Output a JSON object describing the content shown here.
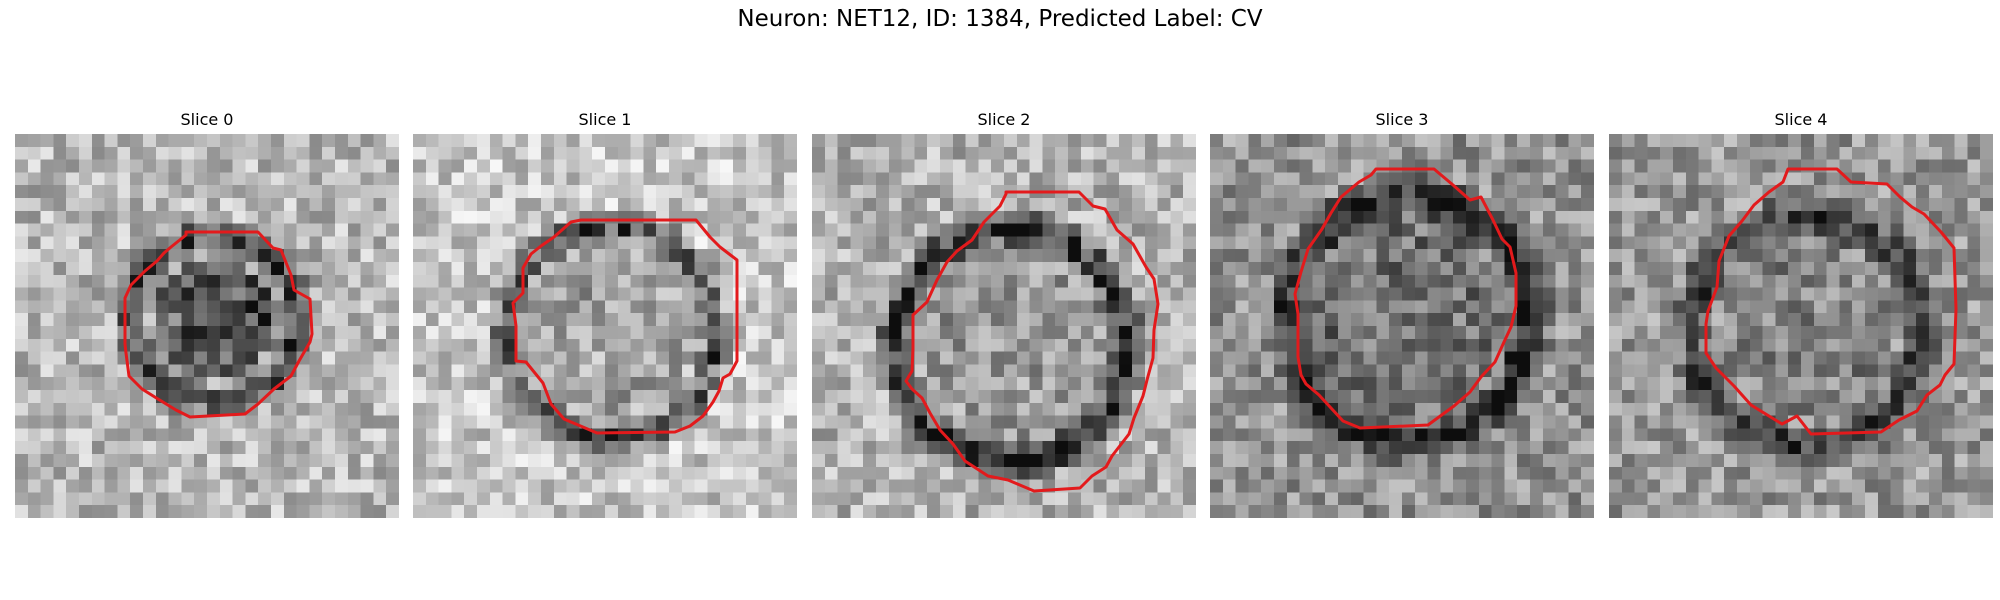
{
  "figure": {
    "title": "Neuron: NET12, ID: 1384, Predicted Label: CV",
    "contour_color": "#e31a1c"
  },
  "slices": [
    {
      "title": "Slice 0"
    },
    {
      "title": "Slice 1"
    },
    {
      "title": "Slice 2"
    },
    {
      "title": "Slice 3"
    },
    {
      "title": "Slice 4"
    }
  ]
}
